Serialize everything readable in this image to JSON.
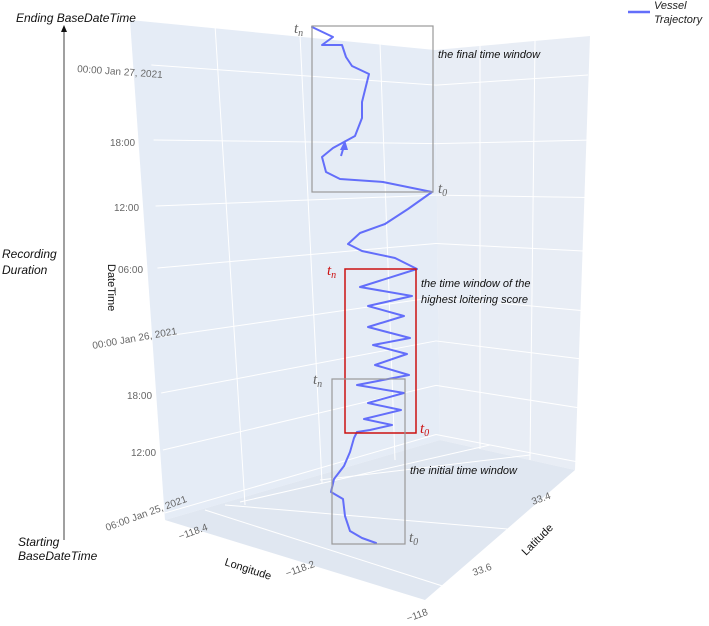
{
  "chart_data": {
    "type": "line",
    "legend": {
      "entries": [
        "Vessel Trajectory"
      ],
      "placement": "top-right"
    },
    "legend_color": "#636efa",
    "side_annotation": {
      "top": "Ending BaseDateTime",
      "middle": "Recording Duration",
      "bottom": "Starting BaseDateTime"
    },
    "axes": {
      "x": {
        "label": "Longitude",
        "ticks": [
          "−118.4",
          "−118.2",
          "−118"
        ]
      },
      "y": {
        "label": "Latitude",
        "ticks": [
          "33.4",
          "33.6"
        ]
      },
      "z": {
        "label": "DateTime",
        "ticks": [
          "06:00 Jan 25, 2021",
          "12:00",
          "18:00",
          "00:00 Jan 26, 2021",
          "06:00",
          "12:00",
          "18:00",
          "00:00 Jan 27, 2021"
        ]
      }
    },
    "windows": [
      {
        "name": "the final time window",
        "color": "#999999",
        "t_start": "t0",
        "t_end": "tn"
      },
      {
        "name": "the time window of the highest loitering score",
        "color": "#cc1111",
        "t_start": "t0",
        "t_end": "tn"
      },
      {
        "name": "the initial time window",
        "color": "#999999",
        "t_start": "t0",
        "t_end": "tn"
      }
    ]
  }
}
